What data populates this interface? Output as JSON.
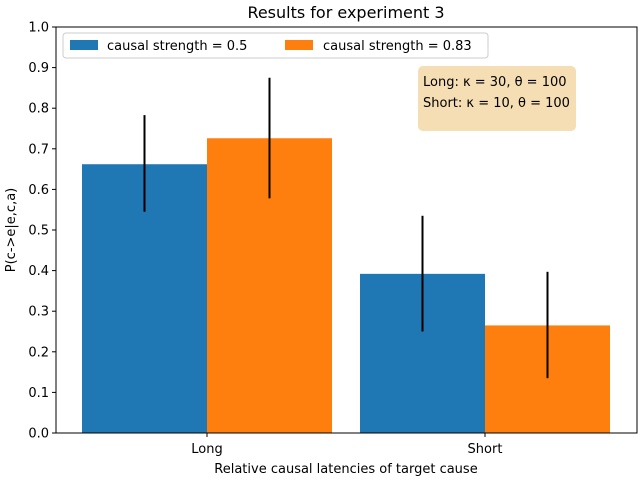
{
  "chart_data": {
    "type": "bar",
    "title": "Results for experiment 3",
    "xlabel": "Relative causal latencies of target cause",
    "ylabel": "P(c->e|e,c,a)",
    "categories": [
      "Long",
      "Short"
    ],
    "ylim": [
      0,
      1.0
    ],
    "yticks": [
      "0.0",
      "0.1",
      "0.2",
      "0.3",
      "0.4",
      "0.5",
      "0.6",
      "0.7",
      "0.8",
      "0.9",
      "1.0"
    ],
    "series": [
      {
        "name": "causal strength = 0.5",
        "color": "#1f77b4",
        "values": [
          0.662,
          0.392
        ],
        "error_low": [
          0.545,
          0.25
        ],
        "error_high": [
          0.783,
          0.535
        ]
      },
      {
        "name": "causal strength = 0.83",
        "color": "#ff7f0e",
        "values": [
          0.726,
          0.265
        ],
        "error_low": [
          0.578,
          0.135
        ],
        "error_high": [
          0.875,
          0.397
        ]
      }
    ],
    "legend": "top-left",
    "grid": false,
    "annotation": {
      "lines": [
        "Long: κ = 30, θ = 100",
        "Short: κ = 10, θ = 100"
      ],
      "box_color": "#f5deb3"
    }
  }
}
